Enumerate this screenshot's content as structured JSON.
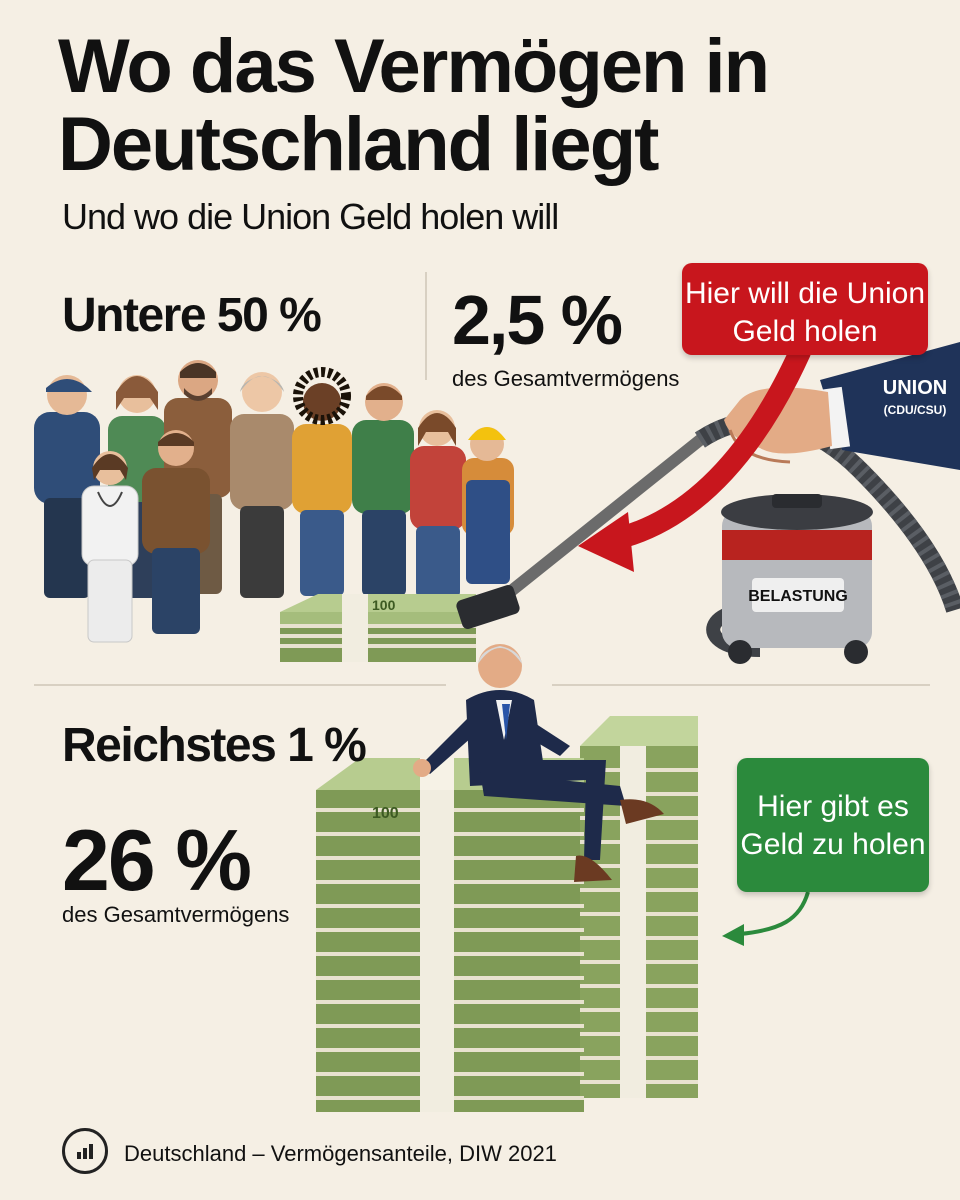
{
  "header": {
    "title": "Wo das Vermögen in Deutschland liegt",
    "subtitle": "Und wo die Union Geld holen will"
  },
  "bottom_half": {
    "label": "Untere 50 %",
    "value": "2,5 %",
    "caption": "des Gesamtvermögens"
  },
  "top_one": {
    "label": "Reichstes 1 %",
    "value": "26 %",
    "caption": "des Gesamtvermögens"
  },
  "callouts": {
    "red": "Hier will die Union Geld holen",
    "green": "Hier gibt es Geld zu holen"
  },
  "illustration": {
    "sleeve_label": "UNION",
    "sleeve_sub": "(CDU/CSU)",
    "vacuum_label": "BELASTUNG",
    "banknote_value": "100"
  },
  "footer": {
    "source": "Deutschland – Vermögensanteile, DIW 2021",
    "icon": "bar-chart-icon"
  },
  "colors": {
    "background": "#f5efe4",
    "red": "#c8161d",
    "green": "#2b8a3c",
    "sleeve": "#1f3359",
    "money": "#8ea866"
  }
}
